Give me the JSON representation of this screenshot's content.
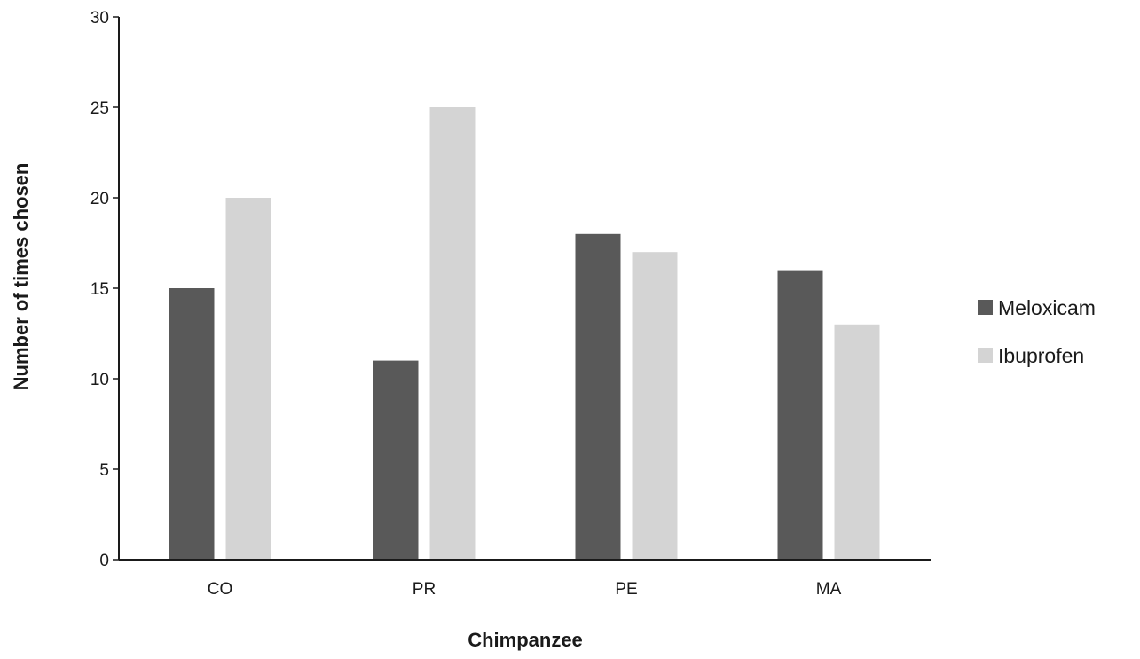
{
  "chart_data": {
    "type": "bar",
    "title": "",
    "xlabel": "Chimpanzee",
    "ylabel": "Number of times chosen",
    "categories": [
      "CO",
      "PR",
      "PE",
      "MA"
    ],
    "series": [
      {
        "name": "Meloxicam",
        "values": [
          15,
          11,
          18,
          16
        ],
        "color": "#595959"
      },
      {
        "name": "Ibuprofen",
        "values": [
          20,
          25,
          17,
          13
        ],
        "color": "#d4d4d4"
      }
    ],
    "ylim": [
      0,
      30
    ],
    "yticks": [
      0,
      5,
      10,
      15,
      20,
      25,
      30
    ],
    "grid": false,
    "legend_position": "right"
  }
}
